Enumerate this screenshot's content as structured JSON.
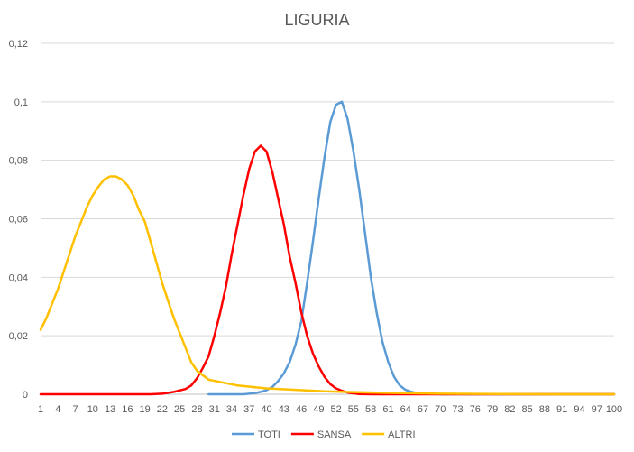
{
  "chart_data": {
    "type": "line",
    "title": "LIGURIA",
    "xlabel": "",
    "ylabel": "",
    "x_range": [
      1,
      100
    ],
    "x_tick_labels": [
      "1",
      "4",
      "7",
      "10",
      "13",
      "16",
      "19",
      "22",
      "25",
      "28",
      "31",
      "34",
      "37",
      "40",
      "43",
      "46",
      "49",
      "52",
      "55",
      "58",
      "61",
      "64",
      "67",
      "70",
      "73",
      "76",
      "79",
      "82",
      "85",
      "88",
      "91",
      "94",
      "97",
      "100"
    ],
    "y_range": [
      0,
      0.12
    ],
    "y_tick_labels": [
      "0",
      "0,02",
      "0,04",
      "0,06",
      "0,08",
      "0,1",
      "0,12"
    ],
    "grid": true,
    "legend_position": "bottom",
    "series": [
      {
        "name": "TOTI",
        "color": "#5b9bd5",
        "x": [
          30,
          32,
          34,
          36,
          37,
          38,
          39,
          40,
          41,
          42,
          43,
          44,
          45,
          46,
          47,
          48,
          49,
          50,
          51,
          52,
          53,
          54,
          55,
          56,
          57,
          58,
          59,
          60,
          61,
          62,
          63,
          64,
          65,
          66,
          68,
          70,
          75,
          80,
          90,
          100
        ],
        "y": [
          0,
          0,
          0,
          0,
          0.0002,
          0.0004,
          0.0008,
          0.0014,
          0.0025,
          0.0045,
          0.0072,
          0.011,
          0.017,
          0.025,
          0.038,
          0.052,
          0.067,
          0.081,
          0.093,
          0.099,
          0.1,
          0.094,
          0.083,
          0.07,
          0.055,
          0.04,
          0.028,
          0.018,
          0.011,
          0.006,
          0.003,
          0.0015,
          0.0008,
          0.0004,
          0.0001,
          0,
          0,
          0,
          0,
          0
        ]
      },
      {
        "name": "SANSA",
        "color": "#ff0000",
        "x": [
          1,
          5,
          10,
          15,
          20,
          22,
          24,
          26,
          27,
          28,
          29,
          30,
          31,
          32,
          33,
          34,
          35,
          36,
          37,
          38,
          39,
          40,
          41,
          42,
          43,
          44,
          45,
          46,
          47,
          48,
          49,
          50,
          51,
          52,
          53,
          54,
          55,
          56,
          58,
          60,
          65,
          70,
          80,
          90,
          100
        ],
        "y": [
          0,
          0,
          0,
          0,
          0,
          0.0002,
          0.0008,
          0.0018,
          0.003,
          0.0055,
          0.009,
          0.013,
          0.02,
          0.028,
          0.037,
          0.048,
          0.058,
          0.068,
          0.077,
          0.083,
          0.085,
          0.083,
          0.076,
          0.067,
          0.058,
          0.047,
          0.038,
          0.028,
          0.02,
          0.014,
          0.0095,
          0.006,
          0.0035,
          0.002,
          0.0012,
          0.0006,
          0.0003,
          0.0001,
          0,
          0,
          0,
          0,
          0,
          0,
          0
        ]
      },
      {
        "name": "ALTRI",
        "color": "#ffc000",
        "x": [
          1,
          2,
          3,
          4,
          5,
          6,
          7,
          8,
          9,
          10,
          11,
          12,
          13,
          14,
          15,
          16,
          17,
          18,
          19,
          20,
          21,
          22,
          23,
          24,
          25,
          26,
          27,
          28,
          30,
          35,
          40,
          50,
          60,
          70,
          80,
          90,
          100
        ],
        "y": [
          0.022,
          0.026,
          0.031,
          0.036,
          0.042,
          0.048,
          0.054,
          0.059,
          0.064,
          0.068,
          0.071,
          0.0735,
          0.0745,
          0.0745,
          0.0735,
          0.0715,
          0.068,
          0.063,
          0.059,
          0.052,
          0.045,
          0.038,
          0.032,
          0.026,
          0.021,
          0.016,
          0.011,
          0.008,
          0.005,
          0.003,
          0.002,
          0.001,
          0.0005,
          0.0002,
          0.0001,
          0,
          0
        ]
      }
    ]
  }
}
